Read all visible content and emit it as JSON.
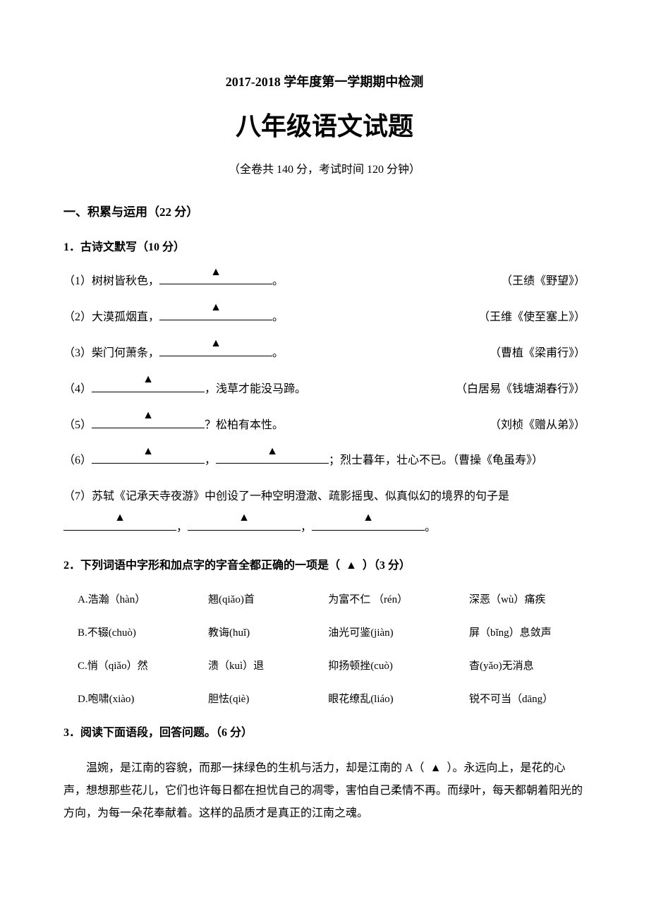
{
  "header": {
    "year_line": "2017-2018 学年度第一学期期中检测",
    "main_title": "八年级语文试题",
    "subtitle": "（全卷共 140 分，考试时间 120 分钟）"
  },
  "section1": {
    "heading": "一、积累与运用（22 分）",
    "q1": {
      "heading": "1．古诗文默写（10 分）",
      "items": [
        {
          "prefix": "（1）树树皆秋色，",
          "suffix": "。",
          "cite": "（王绩《野望》）"
        },
        {
          "prefix": "（2）大漠孤烟直，",
          "suffix": "。",
          "cite": "（王维《使至塞上》）"
        },
        {
          "prefix": "（3）柴门何萧条，",
          "suffix": "。",
          "cite": "（曹植《梁甫行》）"
        },
        {
          "prefix": "（4）",
          "suffix": "，浅草才能没马蹄。",
          "cite": "（白居易《钱塘湖春行》）"
        },
        {
          "prefix": "（5）",
          "suffix": "？松柏有本性。",
          "cite": "（刘桢《赠从弟》）"
        }
      ],
      "item6": {
        "prefix": "（6）",
        "mid": "，",
        "suffix": "；烈士暮年，壮心不已。（曹操《龟虽寿》）"
      },
      "item7": {
        "line": "（7）苏轼《记承天寺夜游》中创设了一种空明澄澈、疏影摇曳、似真似幻的境界的句子是",
        "sep1": "，",
        "sep2": "，",
        "end": "。"
      }
    },
    "q2": {
      "heading_pre": "2．下列词语中字形和加点字的字音全都正确的一项是（",
      "heading_post": "）（3 分）",
      "options": [
        [
          "A.浩瀚（hàn）",
          "翘(qiǎo)首",
          "为富不仁 （rén）",
          "深恶（wù）痛疾"
        ],
        [
          "B.不辍(chuò)",
          "教诲(huǐ)",
          "油光可鉴(jiàn)",
          "屏（bǐng）息敛声"
        ],
        [
          "C.悄（qiǎo）然",
          "溃（kuì）退",
          "抑扬顿挫(cuò)",
          "杳(yǎo)无消息"
        ],
        [
          "D.咆啸(xiào)",
          "胆怯(qiè)",
          "眼花缭乱(liáo)",
          "锐不可当（dāng）"
        ]
      ]
    },
    "q3": {
      "heading": "3．阅读下面语段，回答问题。（6 分）",
      "paragraph_pre": "温婉，是江南的容貌，而那一抹绿色的生机与活力，却是江南的 A（",
      "paragraph_post": "）。永远向上，是花的心声，想想那些花儿，它们也许每日都在担忧自己的凋零，害怕自己柔情不再。而绿叶，每天都朝着阳光的方向，为每一朵花奉献着。这样的品质才是真正的江南之魂。"
    }
  },
  "marks": {
    "triangle": "▲"
  }
}
